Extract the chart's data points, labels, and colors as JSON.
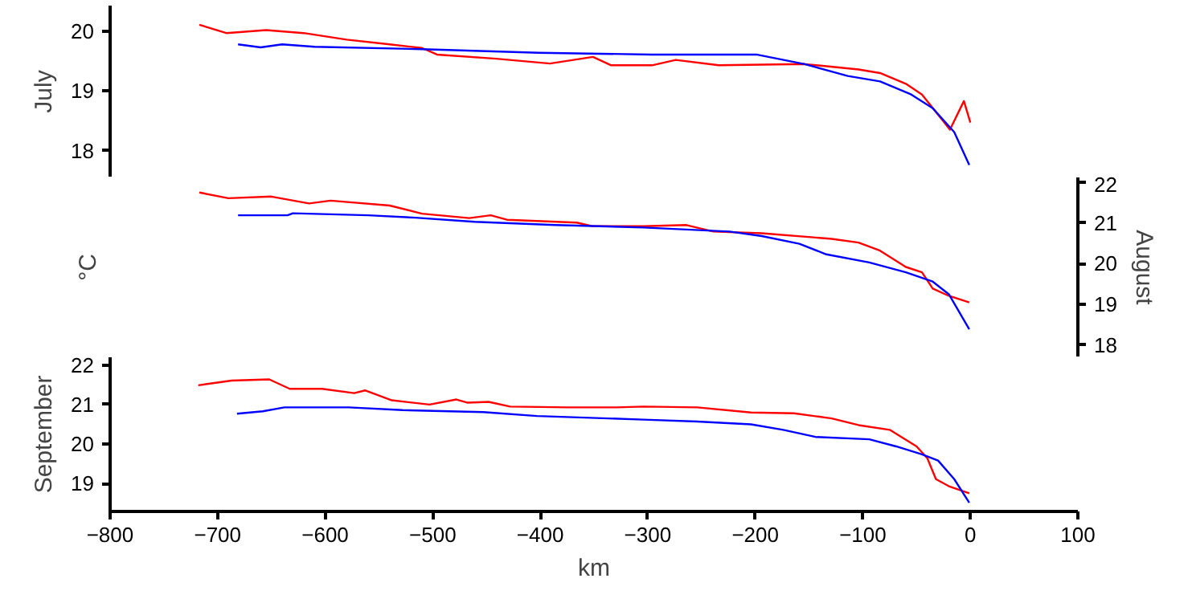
{
  "chart_data": [
    {
      "type": "line",
      "ylabel": "July",
      "xlim": [
        -800,
        100
      ],
      "xticks": [
        -800,
        -700,
        -600,
        -500,
        -400,
        -300,
        -200,
        -100,
        0,
        100
      ],
      "ylim": [
        17.55,
        20.43
      ],
      "yticks": [
        18,
        19,
        20
      ],
      "grid": false,
      "tick_labels": "y",
      "series": [
        {
          "color": "#ff0000",
          "x": [
            -717,
            -692,
            -655,
            -620,
            -580,
            -540,
            -510,
            -496,
            -441,
            -391,
            -351,
            -334,
            -296,
            -274,
            -234,
            -154,
            -104,
            -84,
            -60,
            -45,
            -25,
            -19,
            -6,
            0
          ],
          "values": [
            20.11,
            19.97,
            20.02,
            19.97,
            19.86,
            19.78,
            19.72,
            19.61,
            19.54,
            19.46,
            19.57,
            19.43,
            19.43,
            19.52,
            19.43,
            19.45,
            19.36,
            19.3,
            19.12,
            18.94,
            18.49,
            18.35,
            18.83,
            18.47
          ]
        },
        {
          "color": "#0000ff",
          "x": [
            -681,
            -660,
            -640,
            -610,
            -510,
            -401,
            -296,
            -234,
            -199,
            -154,
            -114,
            -84,
            -55,
            -35,
            -15,
            -1
          ],
          "values": [
            19.78,
            19.73,
            19.78,
            19.74,
            19.7,
            19.64,
            19.61,
            19.61,
            19.61,
            19.45,
            19.25,
            19.16,
            18.94,
            18.71,
            18.31,
            17.76
          ]
        }
      ]
    },
    {
      "type": "line",
      "ylabel": "August",
      "annotations": [
        "°C"
      ],
      "xlim": [
        -800,
        100
      ],
      "xticks": [
        -800,
        -700,
        -600,
        -500,
        -400,
        -300,
        -200,
        -100,
        0,
        100
      ],
      "ylim": [
        17.7,
        22.12
      ],
      "yticks": [
        18,
        19,
        20,
        21,
        22
      ],
      "grid": false,
      "tick_labels": "y",
      "series": [
        {
          "color": "#ff0000",
          "x": [
            -717,
            -690,
            -650,
            -615,
            -595,
            -540,
            -510,
            -466,
            -446,
            -431,
            -366,
            -351,
            -304,
            -264,
            -239,
            -194,
            -129,
            -104,
            -84,
            -60,
            -45,
            -35,
            -20,
            -1
          ],
          "values": [
            21.75,
            21.61,
            21.65,
            21.48,
            21.55,
            21.43,
            21.23,
            21.12,
            21.19,
            21.08,
            21.01,
            20.92,
            20.92,
            20.95,
            20.79,
            20.75,
            20.61,
            20.52,
            20.32,
            19.92,
            19.79,
            19.39,
            19.21,
            19.05
          ]
        },
        {
          "color": "#0000ff",
          "x": [
            -681,
            -635,
            -630,
            -560,
            -516,
            -461,
            -386,
            -304,
            -224,
            -194,
            -159,
            -134,
            -94,
            -60,
            -35,
            -20,
            -1
          ],
          "values": [
            21.19,
            21.19,
            21.24,
            21.19,
            21.13,
            21.03,
            20.95,
            20.89,
            20.79,
            20.68,
            20.49,
            20.23,
            20.03,
            19.79,
            19.56,
            19.25,
            18.39
          ]
        }
      ]
    },
    {
      "type": "line",
      "ylabel": "September",
      "xlabel": "km",
      "xlim": [
        -800,
        100
      ],
      "xticks": [
        -800,
        -700,
        -600,
        -500,
        -400,
        -300,
        -200,
        -100,
        0,
        100
      ],
      "ylim": [
        18.29,
        22.2
      ],
      "yticks": [
        19,
        20,
        21,
        22
      ],
      "grid": false,
      "series": [
        {
          "color": "#ff0000",
          "x": [
            -718,
            -687,
            -652,
            -633,
            -603,
            -573,
            -563,
            -538,
            -503,
            -478,
            -468,
            -448,
            -428,
            -374,
            -329,
            -304,
            -254,
            -204,
            -164,
            -129,
            -104,
            -75,
            -50,
            -40,
            -32,
            -20,
            -1
          ],
          "values": [
            21.49,
            21.61,
            21.64,
            21.4,
            21.4,
            21.29,
            21.36,
            21.11,
            21.0,
            21.13,
            21.05,
            21.07,
            20.95,
            20.93,
            20.93,
            20.95,
            20.93,
            20.8,
            20.78,
            20.65,
            20.48,
            20.36,
            19.94,
            19.64,
            19.11,
            18.93,
            18.75
          ]
        },
        {
          "color": "#0000ff",
          "x": [
            -682,
            -658,
            -638,
            -578,
            -528,
            -453,
            -403,
            -304,
            -254,
            -204,
            -174,
            -144,
            -94,
            -69,
            -45,
            -30,
            -15,
            -1
          ],
          "values": [
            20.77,
            20.83,
            20.93,
            20.93,
            20.86,
            20.81,
            20.71,
            20.62,
            20.57,
            20.5,
            20.36,
            20.18,
            20.12,
            19.94,
            19.74,
            19.58,
            19.11,
            18.51
          ]
        }
      ]
    }
  ]
}
